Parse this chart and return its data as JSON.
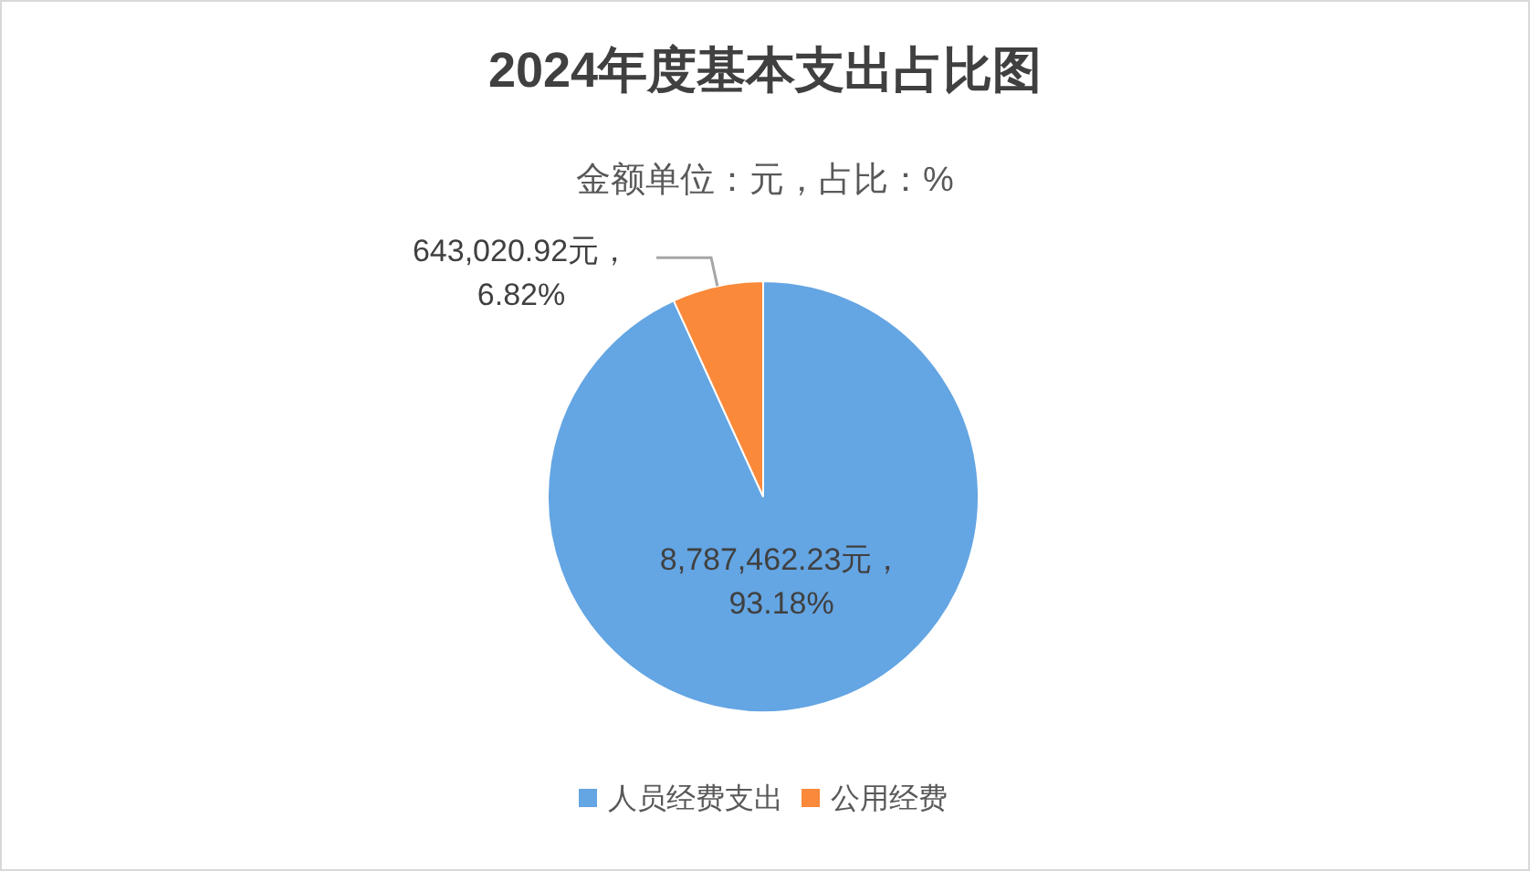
{
  "chart_data": {
    "type": "pie",
    "title": "2024年度基本支出占比图",
    "subtitle": "金额单位：元，占比：%",
    "categories": [
      "人员经费支出",
      "公用经费"
    ],
    "values": [
      8787462.23,
      643020.92
    ],
    "colors": [
      "#64a5e3",
      "#fa893a"
    ],
    "value_labels": [
      "8,787,462.23元，\n93.18%",
      "643,020.92元，\n6.82%"
    ],
    "legend": "bottom"
  }
}
